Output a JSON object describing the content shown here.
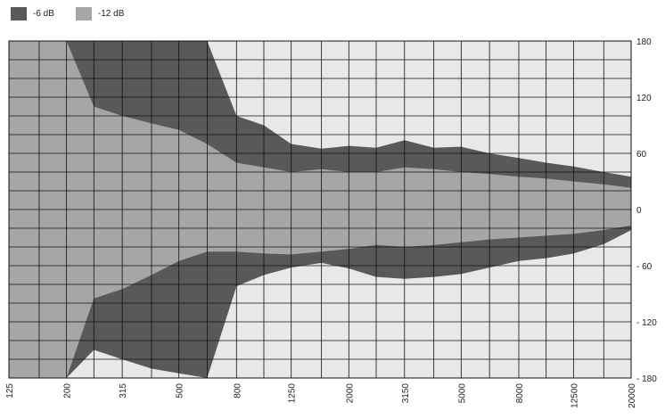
{
  "legend": {
    "items": [
      {
        "label": "-6 dB",
        "color": "#595959"
      },
      {
        "label": "-12 dB",
        "color": "#a6a6a6"
      }
    ]
  },
  "chart_data": {
    "type": "area",
    "title": "",
    "xlabel": "",
    "ylabel": "",
    "x_scale": "log",
    "x": [
      125,
      160,
      200,
      250,
      315,
      400,
      500,
      630,
      800,
      1000,
      1250,
      1600,
      2000,
      2500,
      3150,
      4000,
      5000,
      6300,
      8000,
      10000,
      12500,
      16000,
      20000
    ],
    "xtick_labels": [
      "125",
      "200",
      "315",
      "500",
      "800",
      "1250",
      "2000",
      "3150",
      "5000",
      "8000",
      "12500",
      "20000"
    ],
    "ylim": [
      -180,
      180
    ],
    "yticks": [
      180,
      120,
      60,
      0,
      -60,
      -120,
      -180
    ],
    "ytick_labels": [
      "180",
      "120",
      "60",
      "0",
      "- 60",
      "- 120",
      "- 180"
    ],
    "grid": true,
    "legend_position": "top-left",
    "background_color": "#e8e8e8",
    "series": [
      {
        "name": "-12 dB",
        "color": "#a6a6a6",
        "upper": [
          180,
          180,
          180,
          180,
          180,
          180,
          180,
          180,
          100,
          90,
          70,
          65,
          68,
          66,
          74,
          66,
          67,
          60,
          55,
          50,
          46,
          40,
          35
        ],
        "lower": [
          -180,
          -180,
          -180,
          -180,
          -180,
          -180,
          -180,
          -160,
          -80,
          -68,
          -60,
          -55,
          -62,
          -70,
          -72,
          -70,
          -67,
          -60,
          -53,
          -50,
          -45,
          -35,
          -20
        ]
      },
      {
        "name": "-6 dB",
        "color": "#595959",
        "upper": [
          180,
          180,
          180,
          180,
          180,
          180,
          180,
          180,
          100,
          90,
          70,
          65,
          68,
          66,
          74,
          66,
          67,
          60,
          55,
          50,
          46,
          40,
          35
        ],
        "lower": [
          -180,
          -180,
          -180,
          -180,
          -180,
          -180,
          -180,
          -160,
          -80,
          -68,
          -60,
          -55,
          -62,
          -70,
          -72,
          -70,
          -67,
          -60,
          -53,
          -50,
          -45,
          -35,
          -20
        ]
      }
    ],
    "region_light": {
      "upper_top": [
        180,
        180,
        180,
        180,
        180,
        180,
        180,
        180,
        100,
        90,
        70,
        65,
        68,
        66,
        74,
        66,
        67,
        60,
        55,
        50,
        46,
        40,
        35
      ],
      "upper_bottom": [
        180,
        180,
        180,
        140,
        165,
        170,
        175,
        180,
        92,
        78,
        65,
        63,
        64,
        63,
        72,
        64,
        63,
        58,
        52,
        48,
        42,
        37,
        32
      ],
      "lower_top": [
        -180,
        -180,
        -180,
        -150,
        -160,
        -170,
        -175,
        -180,
        -82,
        -70,
        -62,
        -57,
        -63,
        -72,
        -74,
        -72,
        -69,
        -62,
        -55,
        -52,
        -47,
        -37,
        -22
      ],
      "lower_bottom": [
        -180,
        -180,
        -180,
        -180,
        -180,
        -180,
        -180,
        -180,
        -180,
        -180,
        -180,
        -180,
        -180,
        -180,
        -180,
        -180,
        -180,
        -180,
        -180,
        -180,
        -180,
        -180,
        -180
      ]
    },
    "region_dark": {
      "upper": [
        180,
        180,
        180,
        110,
        100,
        92,
        85,
        70,
        50,
        45,
        40,
        43,
        40,
        40,
        45,
        43,
        40,
        38,
        35,
        33,
        30,
        27,
        23
      ],
      "lower": [
        -180,
        -180,
        -180,
        -95,
        -85,
        -70,
        -55,
        -45,
        -45,
        -47,
        -48,
        -45,
        -42,
        -38,
        -40,
        -38,
        -35,
        -32,
        -30,
        -28,
        -26,
        -22,
        -17
      ]
    }
  }
}
